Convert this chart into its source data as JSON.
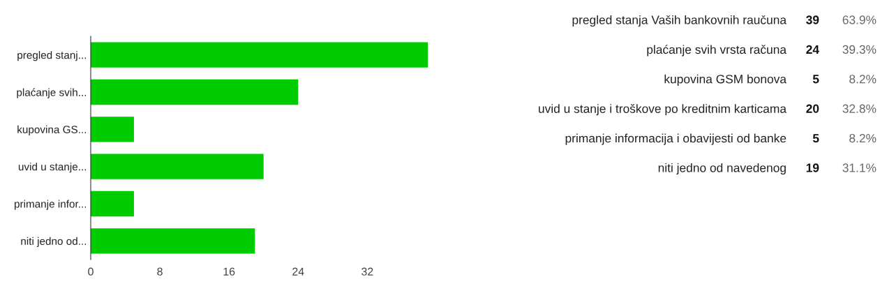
{
  "chart_data": [
    {
      "type": "bar",
      "orientation": "horizontal",
      "categories": [
        "pregled stanj...",
        "plaćanje svih...",
        "kupovina GS...",
        "uvid u stanje...",
        "primanje infor...",
        "niti jedno od..."
      ],
      "values": [
        39,
        24,
        5,
        20,
        5,
        19
      ],
      "color": "#00cc00",
      "xlim": [
        0,
        39
      ],
      "xticks": [
        0,
        8,
        16,
        24,
        32
      ],
      "grid": false,
      "legend": false
    },
    {
      "type": "other",
      "annotations": [
        "pregled stanja Vaših bankovnih raučuna",
        "39",
        "63.9%",
        "plaćanje svih vrsta računa",
        "24",
        "39.3%",
        "kupovina GSM bonova",
        "5",
        "8.2%",
        "uvid u stanje i troškove po kreditnim karticama",
        "20",
        "32.8%",
        "primanje informacija i obavijesti od banke",
        "5",
        "8.2%",
        "niti jedno od navedenog",
        "19",
        "31.1%"
      ]
    }
  ]
}
